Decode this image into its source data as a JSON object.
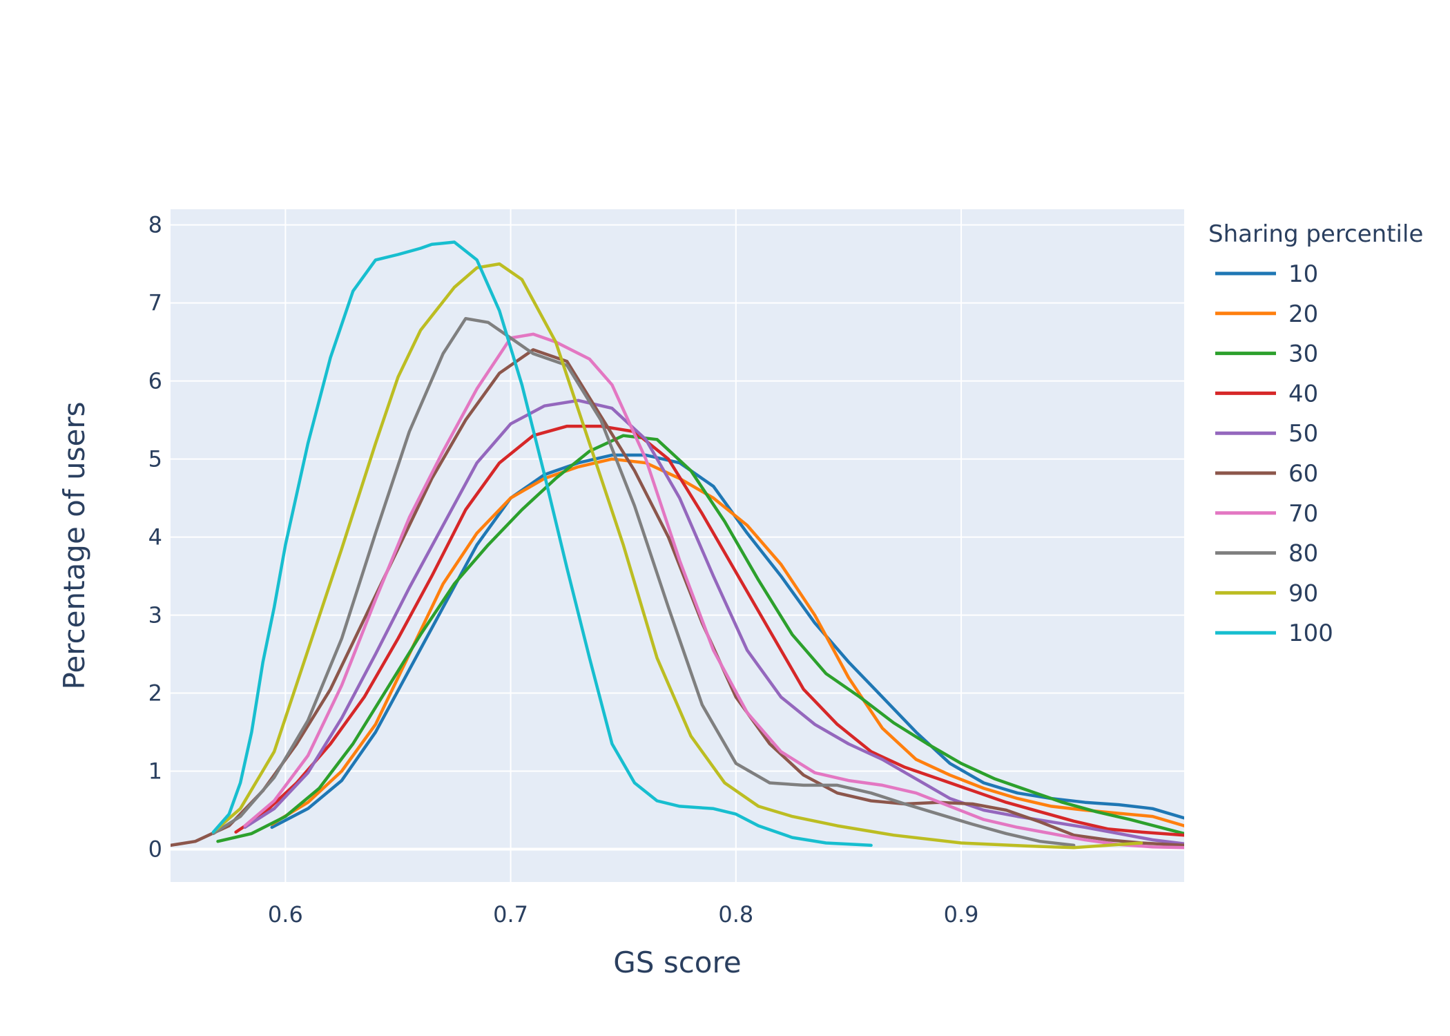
{
  "chart_data": {
    "type": "line",
    "title": "",
    "xlabel": "GS score",
    "ylabel": "Percentage of users",
    "xlim": [
      0.549,
      0.999
    ],
    "ylim": [
      -0.42,
      8.2
    ],
    "xticks": [
      "0.6",
      "0.7",
      "0.8",
      "0.9"
    ],
    "yticks": [
      "0",
      "1",
      "2",
      "3",
      "4",
      "5",
      "6",
      "7",
      "8"
    ],
    "grid": true,
    "legend": {
      "title": "Sharing percentile",
      "placement": "right"
    },
    "series": [
      {
        "name": "10",
        "color": "#1f77b4",
        "x": [
          0.594,
          0.61,
          0.625,
          0.64,
          0.655,
          0.67,
          0.685,
          0.7,
          0.715,
          0.73,
          0.745,
          0.76,
          0.775,
          0.79,
          0.805,
          0.82,
          0.835,
          0.85,
          0.865,
          0.88,
          0.895,
          0.91,
          0.925,
          0.94,
          0.955,
          0.97,
          0.985,
          0.999
        ],
        "y": [
          0.28,
          0.52,
          0.88,
          1.5,
          2.3,
          3.1,
          3.9,
          4.5,
          4.8,
          4.95,
          5.05,
          5.05,
          4.95,
          4.65,
          4.05,
          3.5,
          2.9,
          2.4,
          1.95,
          1.5,
          1.1,
          0.85,
          0.72,
          0.65,
          0.6,
          0.57,
          0.52,
          0.4
        ]
      },
      {
        "name": "20",
        "color": "#ff7f0e",
        "x": [
          0.594,
          0.61,
          0.625,
          0.64,
          0.655,
          0.67,
          0.685,
          0.7,
          0.715,
          0.73,
          0.745,
          0.76,
          0.775,
          0.79,
          0.805,
          0.82,
          0.835,
          0.85,
          0.865,
          0.88,
          0.895,
          0.91,
          0.925,
          0.94,
          0.955,
          0.97,
          0.985,
          0.999
        ],
        "y": [
          0.32,
          0.6,
          1.0,
          1.6,
          2.5,
          3.4,
          4.05,
          4.5,
          4.75,
          4.9,
          5.0,
          4.95,
          4.75,
          4.5,
          4.15,
          3.65,
          3.0,
          2.2,
          1.55,
          1.15,
          0.95,
          0.78,
          0.65,
          0.55,
          0.5,
          0.46,
          0.42,
          0.3
        ]
      },
      {
        "name": "30",
        "color": "#2ca02c",
        "x": [
          0.57,
          0.585,
          0.6,
          0.615,
          0.63,
          0.645,
          0.66,
          0.675,
          0.69,
          0.705,
          0.72,
          0.735,
          0.75,
          0.765,
          0.78,
          0.795,
          0.81,
          0.825,
          0.84,
          0.855,
          0.87,
          0.885,
          0.9,
          0.915,
          0.93,
          0.945,
          0.96,
          0.975,
          0.999
        ],
        "y": [
          0.1,
          0.2,
          0.42,
          0.78,
          1.35,
          2.05,
          2.75,
          3.4,
          3.9,
          4.35,
          4.75,
          5.1,
          5.3,
          5.25,
          4.85,
          4.2,
          3.45,
          2.75,
          2.25,
          1.95,
          1.62,
          1.35,
          1.1,
          0.9,
          0.75,
          0.6,
          0.48,
          0.38,
          0.2
        ]
      },
      {
        "name": "40",
        "color": "#d62728",
        "x": [
          0.578,
          0.59,
          0.605,
          0.62,
          0.635,
          0.65,
          0.665,
          0.68,
          0.695,
          0.71,
          0.725,
          0.74,
          0.755,
          0.77,
          0.785,
          0.8,
          0.815,
          0.83,
          0.845,
          0.86,
          0.875,
          0.89,
          0.905,
          0.92,
          0.935,
          0.95,
          0.965,
          0.98,
          0.999
        ],
        "y": [
          0.22,
          0.45,
          0.85,
          1.35,
          1.95,
          2.7,
          3.5,
          4.35,
          4.95,
          5.3,
          5.42,
          5.42,
          5.35,
          5.0,
          4.3,
          3.55,
          2.8,
          2.05,
          1.6,
          1.25,
          1.05,
          0.9,
          0.75,
          0.6,
          0.48,
          0.36,
          0.26,
          0.22,
          0.18
        ]
      },
      {
        "name": "50",
        "color": "#9467bd",
        "x": [
          0.582,
          0.595,
          0.61,
          0.625,
          0.64,
          0.655,
          0.67,
          0.685,
          0.7,
          0.715,
          0.73,
          0.745,
          0.76,
          0.775,
          0.79,
          0.805,
          0.82,
          0.835,
          0.85,
          0.865,
          0.88,
          0.895,
          0.91,
          0.925,
          0.94,
          0.955,
          0.97,
          0.985,
          0.999
        ],
        "y": [
          0.28,
          0.52,
          0.98,
          1.68,
          2.5,
          3.35,
          4.15,
          4.95,
          5.45,
          5.68,
          5.75,
          5.65,
          5.25,
          4.5,
          3.5,
          2.55,
          1.95,
          1.6,
          1.35,
          1.15,
          0.9,
          0.65,
          0.5,
          0.42,
          0.35,
          0.28,
          0.2,
          0.12,
          0.07
        ]
      },
      {
        "name": "60",
        "color": "#8c564b",
        "x": [
          0.549,
          0.56,
          0.575,
          0.59,
          0.605,
          0.62,
          0.635,
          0.65,
          0.665,
          0.68,
          0.695,
          0.71,
          0.725,
          0.74,
          0.755,
          0.77,
          0.785,
          0.8,
          0.815,
          0.83,
          0.845,
          0.86,
          0.875,
          0.89,
          0.905,
          0.92,
          0.935,
          0.95,
          0.965,
          0.98,
          0.999
        ],
        "y": [
          0.05,
          0.1,
          0.3,
          0.75,
          1.35,
          2.05,
          2.95,
          3.85,
          4.75,
          5.5,
          6.1,
          6.4,
          6.25,
          5.55,
          4.85,
          4.0,
          2.9,
          1.95,
          1.35,
          0.95,
          0.72,
          0.62,
          0.58,
          0.6,
          0.58,
          0.5,
          0.35,
          0.18,
          0.12,
          0.08,
          0.05
        ]
      },
      {
        "name": "70",
        "color": "#e377c2",
        "x": [
          0.582,
          0.595,
          0.61,
          0.625,
          0.64,
          0.655,
          0.67,
          0.685,
          0.7,
          0.71,
          0.72,
          0.735,
          0.745,
          0.76,
          0.775,
          0.79,
          0.805,
          0.82,
          0.835,
          0.85,
          0.865,
          0.88,
          0.895,
          0.91,
          0.925,
          0.94,
          0.955,
          0.97,
          0.985,
          0.999
        ],
        "y": [
          0.3,
          0.62,
          1.2,
          2.1,
          3.2,
          4.25,
          5.1,
          5.9,
          6.55,
          6.6,
          6.5,
          6.28,
          5.95,
          5.0,
          3.7,
          2.55,
          1.75,
          1.25,
          0.98,
          0.88,
          0.82,
          0.72,
          0.55,
          0.38,
          0.28,
          0.2,
          0.12,
          0.06,
          0.03,
          0.02
        ]
      },
      {
        "name": "80",
        "color": "#7f7f7f",
        "x": [
          0.568,
          0.58,
          0.595,
          0.61,
          0.625,
          0.64,
          0.655,
          0.67,
          0.68,
          0.69,
          0.7,
          0.71,
          0.725,
          0.74,
          0.755,
          0.77,
          0.785,
          0.8,
          0.815,
          0.83,
          0.845,
          0.86,
          0.875,
          0.89,
          0.905,
          0.92,
          0.935,
          0.95
        ],
        "y": [
          0.2,
          0.42,
          0.92,
          1.65,
          2.7,
          4.05,
          5.35,
          6.35,
          6.8,
          6.75,
          6.55,
          6.35,
          6.2,
          5.5,
          4.4,
          3.1,
          1.85,
          1.1,
          0.85,
          0.82,
          0.82,
          0.72,
          0.58,
          0.45,
          0.32,
          0.2,
          0.1,
          0.05
        ]
      },
      {
        "name": "90",
        "color": "#bcbd22",
        "x": [
          0.568,
          0.58,
          0.595,
          0.61,
          0.625,
          0.64,
          0.65,
          0.66,
          0.675,
          0.685,
          0.695,
          0.705,
          0.72,
          0.735,
          0.75,
          0.765,
          0.78,
          0.795,
          0.81,
          0.825,
          0.845,
          0.87,
          0.9,
          0.93,
          0.95,
          0.965,
          0.98
        ],
        "y": [
          0.22,
          0.52,
          1.25,
          2.55,
          3.85,
          5.2,
          6.05,
          6.65,
          7.2,
          7.45,
          7.5,
          7.3,
          6.5,
          5.2,
          3.9,
          2.45,
          1.45,
          0.85,
          0.55,
          0.42,
          0.3,
          0.18,
          0.08,
          0.04,
          0.02,
          0.05,
          0.08
        ]
      },
      {
        "name": "100",
        "color": "#17becf",
        "x": [
          0.568,
          0.575,
          0.58,
          0.585,
          0.59,
          0.595,
          0.6,
          0.61,
          0.62,
          0.63,
          0.64,
          0.65,
          0.66,
          0.665,
          0.675,
          0.685,
          0.695,
          0.705,
          0.715,
          0.725,
          0.735,
          0.745,
          0.755,
          0.765,
          0.775,
          0.79,
          0.8,
          0.81,
          0.825,
          0.84,
          0.86
        ],
        "y": [
          0.22,
          0.45,
          0.85,
          1.5,
          2.4,
          3.1,
          3.9,
          5.2,
          6.3,
          7.15,
          7.55,
          7.62,
          7.7,
          7.75,
          7.78,
          7.55,
          6.9,
          5.95,
          4.8,
          3.6,
          2.45,
          1.35,
          0.85,
          0.62,
          0.55,
          0.52,
          0.45,
          0.3,
          0.15,
          0.08,
          0.05
        ]
      }
    ]
  }
}
